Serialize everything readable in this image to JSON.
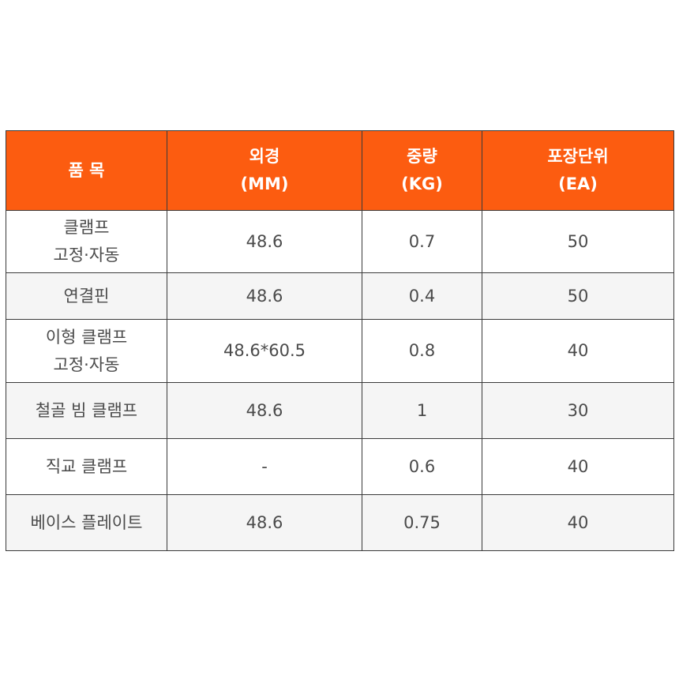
{
  "table": {
    "headers": [
      {
        "line1": "품 목",
        "line2": ""
      },
      {
        "line1": "외경",
        "line2": "(MM)"
      },
      {
        "line1": "중량",
        "line2": "(KG)"
      },
      {
        "line1": "포장단위",
        "line2": "(EA)"
      }
    ],
    "rows": [
      {
        "name_line1": "클램프",
        "name_line2": "고정·자동",
        "diameter": "48.6",
        "weight": "0.7",
        "unit": "50"
      },
      {
        "name_line1": "연결핀",
        "name_line2": "",
        "diameter": "48.6",
        "weight": "0.4",
        "unit": "50"
      },
      {
        "name_line1": "이형 클램프",
        "name_line2": "고정·자동",
        "diameter": "48.6*60.5",
        "weight": "0.8",
        "unit": "40"
      },
      {
        "name_line1": "철골 빔 클램프",
        "name_line2": "",
        "diameter": "48.6",
        "weight": "1",
        "unit": "30"
      },
      {
        "name_line1": "직교 클램프",
        "name_line2": "",
        "diameter": "-",
        "weight": "0.6",
        "unit": "40"
      },
      {
        "name_line1": "베이스 플레이트",
        "name_line2": "",
        "diameter": "48.6",
        "weight": "0.75",
        "unit": "40"
      }
    ]
  },
  "colors": {
    "header_bg": "#fc5c10",
    "header_text": "#ffffff",
    "body_text": "#4a4a4a",
    "stripe_bg": "#f5f5f5",
    "border": "#3a3a3a"
  }
}
